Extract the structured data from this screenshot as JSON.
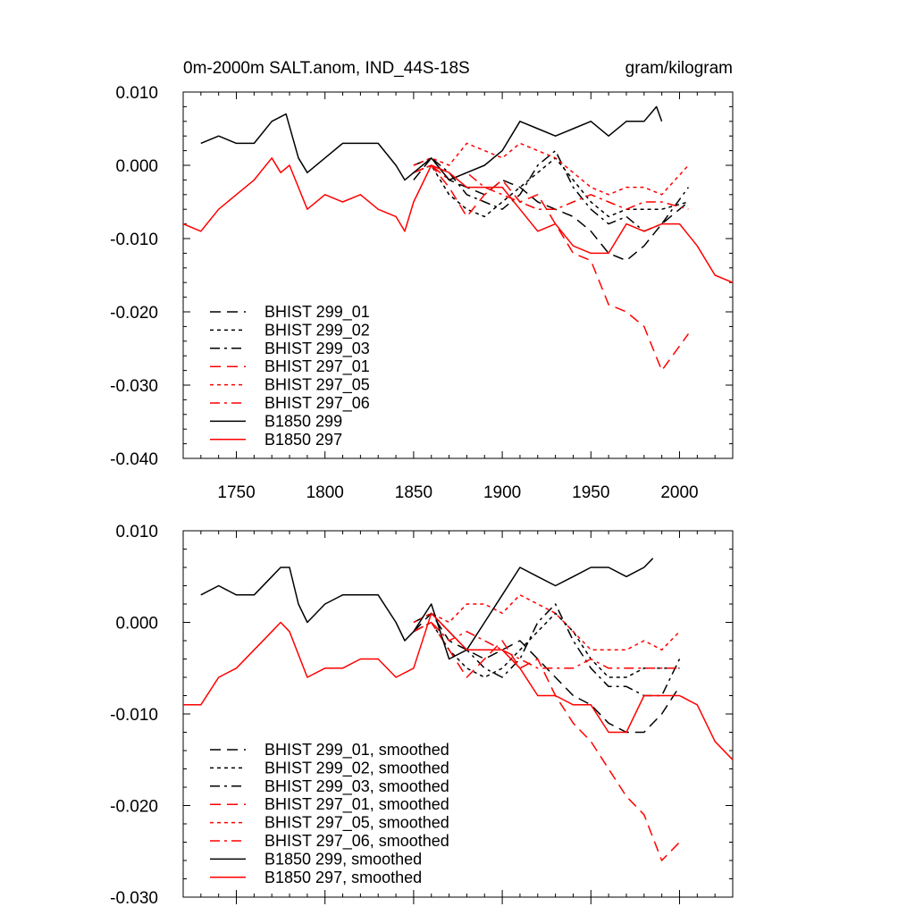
{
  "chart_data": [
    {
      "type": "line",
      "title": "0m-2000m SALT.anom, IND_44S-18S",
      "units": "gram/kilogram",
      "xlim": [
        1720,
        2030
      ],
      "ylim": [
        -0.04,
        0.01
      ],
      "xticks": [
        1750,
        1800,
        1850,
        1900,
        1950,
        2000
      ],
      "xtick_labels": [
        "1750",
        "1800",
        "1850",
        "1900",
        "1950",
        "2000"
      ],
      "yticks": [
        0.01,
        0.0,
        -0.01,
        -0.02,
        -0.03,
        -0.04
      ],
      "ytick_labels": [
        "0.010",
        "0.000",
        "-0.010",
        "-0.020",
        "-0.030",
        "-0.040"
      ],
      "legend_position": "bottom-left",
      "series": [
        {
          "name": "BHIST 299_01",
          "color": "#000000",
          "dash": "dash",
          "x": [
            1850,
            1860,
            1870,
            1880,
            1890,
            1900,
            1910,
            1920,
            1930,
            1940,
            1950,
            1960,
            1970,
            1980,
            1990,
            2005
          ],
          "y": [
            -0.002,
            0.001,
            -0.002,
            -0.003,
            -0.004,
            -0.002,
            -0.003,
            -0.005,
            -0.006,
            -0.007,
            -0.009,
            -0.012,
            -0.013,
            -0.011,
            -0.008,
            -0.005
          ]
        },
        {
          "name": "BHIST 299_02",
          "color": "#000000",
          "dash": "short",
          "x": [
            1850,
            1860,
            1870,
            1880,
            1890,
            1900,
            1910,
            1920,
            1930,
            1940,
            1950,
            1960,
            1970,
            1980,
            1990,
            2005
          ],
          "y": [
            -0.001,
            0.0,
            -0.004,
            -0.006,
            -0.007,
            -0.005,
            -0.003,
            -0.001,
            0.001,
            -0.002,
            -0.005,
            -0.007,
            -0.006,
            -0.006,
            -0.006,
            -0.005
          ]
        },
        {
          "name": "BHIST 299_03",
          "color": "#000000",
          "dash": "dashdot",
          "x": [
            1850,
            1860,
            1870,
            1880,
            1890,
            1900,
            1910,
            1920,
            1930,
            1940,
            1950,
            1960,
            1970,
            1980,
            1990,
            2005
          ],
          "y": [
            0.0,
            0.001,
            -0.001,
            -0.004,
            -0.005,
            -0.006,
            -0.004,
            0.0,
            0.002,
            -0.003,
            -0.006,
            -0.008,
            -0.007,
            -0.009,
            -0.008,
            -0.003
          ]
        },
        {
          "name": "BHIST 297_01",
          "color": "#ff0000",
          "dash": "dash",
          "x": [
            1850,
            1860,
            1870,
            1880,
            1890,
            1900,
            1910,
            1920,
            1930,
            1940,
            1950,
            1960,
            1970,
            1980,
            1990,
            2005
          ],
          "y": [
            -0.001,
            0.0,
            -0.003,
            -0.007,
            -0.004,
            -0.002,
            -0.005,
            -0.004,
            -0.008,
            -0.012,
            -0.013,
            -0.019,
            -0.02,
            -0.022,
            -0.028,
            -0.023
          ]
        },
        {
          "name": "BHIST 297_05",
          "color": "#ff0000",
          "dash": "short",
          "x": [
            1850,
            1860,
            1870,
            1880,
            1890,
            1900,
            1910,
            1920,
            1930,
            1940,
            1950,
            1960,
            1970,
            1980,
            1990,
            2005
          ],
          "y": [
            0.0,
            0.001,
            0.0,
            0.003,
            0.002,
            0.001,
            0.003,
            0.002,
            0.001,
            -0.001,
            -0.003,
            -0.004,
            -0.003,
            -0.003,
            -0.004,
            0.0
          ]
        },
        {
          "name": "BHIST 297_06",
          "color": "#ff0000",
          "dash": "dashdot",
          "x": [
            1850,
            1860,
            1870,
            1880,
            1890,
            1900,
            1910,
            1920,
            1930,
            1940,
            1950,
            1960,
            1970,
            1980,
            1990,
            2005
          ],
          "y": [
            -0.001,
            0.0,
            -0.002,
            -0.001,
            -0.003,
            -0.004,
            -0.005,
            -0.006,
            -0.006,
            -0.005,
            -0.004,
            -0.005,
            -0.006,
            -0.005,
            -0.005,
            -0.006
          ]
        },
        {
          "name": "B1850 299",
          "color": "#000000",
          "dash": "solid",
          "x": [
            1730,
            1740,
            1750,
            1760,
            1770,
            1778,
            1785,
            1790,
            1800,
            1810,
            1820,
            1830,
            1840,
            1845,
            1850,
            1860,
            1870,
            1880,
            1890,
            1900,
            1910,
            1920,
            1930,
            1940,
            1950,
            1960,
            1970,
            1980,
            1987,
            1990
          ],
          "y": [
            0.003,
            0.004,
            0.003,
            0.003,
            0.006,
            0.007,
            0.001,
            -0.001,
            0.001,
            0.003,
            0.003,
            0.003,
            0.0,
            -0.002,
            -0.001,
            0.001,
            -0.002,
            -0.001,
            0.0,
            0.002,
            0.006,
            0.005,
            0.004,
            0.005,
            0.006,
            0.004,
            0.006,
            0.006,
            0.008,
            0.006
          ]
        },
        {
          "name": "B1850 297",
          "color": "#ff0000",
          "dash": "solid",
          "x": [
            1720,
            1730,
            1740,
            1750,
            1760,
            1770,
            1775,
            1780,
            1790,
            1800,
            1810,
            1820,
            1830,
            1840,
            1845,
            1850,
            1860,
            1870,
            1880,
            1890,
            1900,
            1910,
            1920,
            1930,
            1940,
            1950,
            1960,
            1970,
            1980,
            1990,
            2000,
            2010,
            2020,
            2030
          ],
          "y": [
            -0.008,
            -0.009,
            -0.006,
            -0.004,
            -0.002,
            0.001,
            -0.001,
            0.0,
            -0.006,
            -0.004,
            -0.005,
            -0.004,
            -0.006,
            -0.007,
            -0.009,
            -0.005,
            0.0,
            -0.001,
            -0.003,
            -0.003,
            -0.003,
            -0.006,
            -0.009,
            -0.008,
            -0.011,
            -0.012,
            -0.012,
            -0.008,
            -0.009,
            -0.008,
            -0.008,
            -0.011,
            -0.015,
            -0.016
          ]
        }
      ]
    },
    {
      "type": "line",
      "xlim": [
        1720,
        2030
      ],
      "ylim": [
        -0.03,
        0.01
      ],
      "xticks": [
        1750,
        1800,
        1850,
        1900,
        1950,
        2000
      ],
      "yticks": [
        0.01,
        0.0,
        -0.01,
        -0.02,
        -0.03
      ],
      "ytick_labels": [
        "0.010",
        "0.000",
        "-0.010",
        "-0.020",
        "-0.030"
      ],
      "legend_position": "bottom-left",
      "series": [
        {
          "name": "BHIST 299_01, smoothed",
          "color": "#000000",
          "dash": "dash",
          "x": [
            1850,
            1860,
            1870,
            1880,
            1890,
            1900,
            1910,
            1920,
            1930,
            1940,
            1950,
            1960,
            1970,
            1980,
            1990,
            2000
          ],
          "y": [
            -0.001,
            0.001,
            -0.002,
            -0.003,
            -0.004,
            -0.003,
            -0.002,
            -0.004,
            -0.006,
            -0.008,
            -0.009,
            -0.011,
            -0.012,
            -0.012,
            -0.01,
            -0.007
          ]
        },
        {
          "name": "BHIST 299_02, smoothed",
          "color": "#000000",
          "dash": "short",
          "x": [
            1850,
            1860,
            1870,
            1880,
            1890,
            1900,
            1910,
            1920,
            1930,
            1940,
            1950,
            1960,
            1970,
            1980,
            1990,
            2000
          ],
          "y": [
            -0.001,
            0.0,
            -0.003,
            -0.005,
            -0.006,
            -0.005,
            -0.003,
            -0.001,
            0.001,
            -0.001,
            -0.004,
            -0.006,
            -0.006,
            -0.005,
            -0.005,
            -0.005
          ]
        },
        {
          "name": "BHIST 299_03, smoothed",
          "color": "#000000",
          "dash": "dashdot",
          "x": [
            1850,
            1860,
            1870,
            1880,
            1890,
            1900,
            1910,
            1920,
            1930,
            1940,
            1950,
            1960,
            1970,
            1980,
            1990,
            2000
          ],
          "y": [
            0.0,
            0.001,
            -0.001,
            -0.003,
            -0.005,
            -0.006,
            -0.004,
            0.0,
            0.002,
            -0.002,
            -0.005,
            -0.007,
            -0.007,
            -0.008,
            -0.008,
            -0.004
          ]
        },
        {
          "name": "BHIST 297_01, smoothed",
          "color": "#ff0000",
          "dash": "dash",
          "x": [
            1850,
            1860,
            1870,
            1880,
            1890,
            1900,
            1910,
            1920,
            1930,
            1940,
            1950,
            1960,
            1970,
            1980,
            1990,
            2000
          ],
          "y": [
            -0.001,
            0.0,
            -0.003,
            -0.006,
            -0.004,
            -0.002,
            -0.005,
            -0.004,
            -0.008,
            -0.011,
            -0.013,
            -0.016,
            -0.019,
            -0.021,
            -0.026,
            -0.024
          ]
        },
        {
          "name": "BHIST 297_05, smoothed",
          "color": "#ff0000",
          "dash": "short",
          "x": [
            1850,
            1860,
            1870,
            1880,
            1890,
            1900,
            1910,
            1920,
            1930,
            1940,
            1950,
            1960,
            1970,
            1980,
            1990,
            2000
          ],
          "y": [
            0.0,
            0.001,
            0.0,
            0.002,
            0.002,
            0.001,
            0.003,
            0.002,
            0.001,
            -0.001,
            -0.003,
            -0.003,
            -0.003,
            -0.002,
            -0.003,
            -0.001
          ]
        },
        {
          "name": "BHIST 297_06, smoothed",
          "color": "#ff0000",
          "dash": "dashdot",
          "x": [
            1850,
            1860,
            1870,
            1880,
            1890,
            1900,
            1910,
            1920,
            1930,
            1940,
            1950,
            1960,
            1970,
            1980,
            1990,
            2000
          ],
          "y": [
            -0.001,
            0.0,
            -0.002,
            -0.001,
            -0.002,
            -0.003,
            -0.004,
            -0.005,
            -0.005,
            -0.005,
            -0.004,
            -0.005,
            -0.005,
            -0.005,
            -0.005,
            -0.005
          ]
        },
        {
          "name": "B1850 299, smoothed",
          "color": "#000000",
          "dash": "solid",
          "x": [
            1730,
            1740,
            1750,
            1760,
            1770,
            1775,
            1780,
            1785,
            1790,
            1800,
            1810,
            1820,
            1830,
            1840,
            1845,
            1850,
            1860,
            1870,
            1880,
            1890,
            1900,
            1910,
            1920,
            1930,
            1940,
            1950,
            1960,
            1970,
            1980,
            1985
          ],
          "y": [
            0.003,
            0.004,
            0.003,
            0.003,
            0.005,
            0.006,
            0.006,
            0.002,
            0.0,
            0.002,
            0.003,
            0.003,
            0.003,
            0.0,
            -0.002,
            -0.001,
            0.002,
            -0.004,
            -0.003,
            0.0,
            0.003,
            0.006,
            0.005,
            0.004,
            0.005,
            0.006,
            0.006,
            0.005,
            0.006,
            0.007
          ]
        },
        {
          "name": "B1850 297, smoothed",
          "color": "#ff0000",
          "dash": "solid",
          "x": [
            1720,
            1730,
            1740,
            1750,
            1760,
            1770,
            1775,
            1780,
            1790,
            1800,
            1810,
            1820,
            1830,
            1840,
            1850,
            1860,
            1870,
            1880,
            1890,
            1900,
            1910,
            1920,
            1930,
            1940,
            1950,
            1960,
            1970,
            1980,
            1990,
            2000,
            2010,
            2020,
            2030
          ],
          "y": [
            -0.009,
            -0.009,
            -0.006,
            -0.005,
            -0.003,
            -0.001,
            0.0,
            -0.001,
            -0.006,
            -0.005,
            -0.005,
            -0.004,
            -0.004,
            -0.006,
            -0.005,
            0.001,
            -0.001,
            -0.003,
            -0.003,
            -0.003,
            -0.005,
            -0.008,
            -0.008,
            -0.009,
            -0.009,
            -0.012,
            -0.012,
            -0.008,
            -0.008,
            -0.008,
            -0.009,
            -0.013,
            -0.015
          ]
        }
      ]
    }
  ]
}
